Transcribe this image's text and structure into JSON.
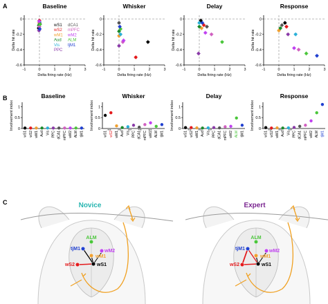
{
  "panel_letters": {
    "a": "A",
    "b": "B",
    "c": "C"
  },
  "epochs": [
    "Baseline",
    "Whisker",
    "Delay",
    "Response"
  ],
  "regions": [
    "wS1",
    "wS2",
    "wM1",
    "Aud",
    "Vis",
    "PPC",
    "dCA1",
    "mPFC",
    "wM2",
    "ALM",
    "tjM1"
  ],
  "colors": {
    "wS1": "#000000",
    "wS2": "#e41a1c",
    "wM1": "#f0a030",
    "Aud": "#1a8a2a",
    "Vis": "#2ab0d8",
    "PPC": "#8a3aa8",
    "dCA1": "#555555",
    "mPFC": "#d060c0",
    "wM2": "#c040f0",
    "ALM": "#4ac63a",
    "tjM1": "#2040d0",
    "teal": "#27b5b0",
    "purple": "#7a2590",
    "orange": "#f0a020"
  },
  "legend_col1": [
    "wS1",
    "wS2",
    "wM1",
    "Aud",
    "Vis",
    "PPC"
  ],
  "legend_col2": [
    "dCA1",
    "mPFC",
    "wM2",
    "ALM",
    "tjM1"
  ],
  "chart_data": [
    {
      "type": "scatter",
      "panel": "A",
      "title": "Baseline",
      "xlabel": "Delta firing rate (Hz)",
      "ylabel": "Delta hit rate",
      "xlim": [
        -1,
        3
      ],
      "ylim": [
        -0.6,
        0.05
      ],
      "xticks": [
        "-1",
        "0",
        "1",
        "2",
        "3"
      ],
      "yticks": [
        "0",
        "-0.2",
        "-0.4",
        "-0.6"
      ],
      "points": [
        {
          "r": "wS1",
          "x": -0.05,
          "y": -0.12
        },
        {
          "r": "wS2",
          "x": 0.0,
          "y": -0.02
        },
        {
          "r": "wM1",
          "x": -0.02,
          "y": -0.05
        },
        {
          "r": "Aud",
          "x": -0.04,
          "y": -0.08
        },
        {
          "r": "Vis",
          "x": 0.02,
          "y": -0.04
        },
        {
          "r": "PPC",
          "x": -0.03,
          "y": -0.15
        },
        {
          "r": "dCA1",
          "x": 0.03,
          "y": -0.06
        },
        {
          "r": "mPFC",
          "x": 0.0,
          "y": -0.1
        },
        {
          "r": "wM2",
          "x": -0.02,
          "y": -0.03
        },
        {
          "r": "ALM",
          "x": 0.04,
          "y": -0.07
        },
        {
          "r": "tjM1",
          "x": 0.02,
          "y": -0.13
        }
      ]
    },
    {
      "type": "scatter",
      "panel": "A",
      "title": "Whisker",
      "xlabel": "Delta firing rate (Hz)",
      "ylabel": "Delta hit rate",
      "xlim": [
        -1,
        3
      ],
      "ylim": [
        -0.6,
        0.05
      ],
      "xticks": [
        "-1",
        "0",
        "1",
        "2",
        "3"
      ],
      "yticks": [
        "0",
        "-0.2",
        "-0.4",
        "-0.6"
      ],
      "points": [
        {
          "r": "wS1",
          "x": 1.9,
          "y": -0.3
        },
        {
          "r": "wS2",
          "x": 1.1,
          "y": -0.5
        },
        {
          "r": "wM1",
          "x": 0.0,
          "y": -0.22
        },
        {
          "r": "Aud",
          "x": 0.0,
          "y": -0.16
        },
        {
          "r": "Vis",
          "x": 0.1,
          "y": -0.2
        },
        {
          "r": "PPC",
          "x": 0.0,
          "y": -0.35
        },
        {
          "r": "dCA1",
          "x": 0.0,
          "y": -0.05
        },
        {
          "r": "mPFC",
          "x": 0.25,
          "y": -0.3
        },
        {
          "r": "wM2",
          "x": 0.3,
          "y": -0.28
        },
        {
          "r": "ALM",
          "x": 0.1,
          "y": -0.13
        },
        {
          "r": "tjM1",
          "x": 0.05,
          "y": -0.1
        }
      ]
    },
    {
      "type": "scatter",
      "panel": "A",
      "title": "Delay",
      "xlabel": "Delta firing rate (Hz)",
      "ylabel": "Delta hit rate",
      "xlim": [
        -1,
        3
      ],
      "ylim": [
        -0.6,
        0.05
      ],
      "xticks": [
        "-1",
        "0",
        "1",
        "2",
        "3"
      ],
      "yticks": [
        "0",
        "-0.2",
        "-0.4",
        "-0.6"
      ],
      "points": [
        {
          "r": "wS1",
          "x": 0.1,
          "y": -0.02
        },
        {
          "r": "wS2",
          "x": 0.3,
          "y": -0.08
        },
        {
          "r": "wM1",
          "x": 0.15,
          "y": -0.12
        },
        {
          "r": "Aud",
          "x": 0.0,
          "y": -0.1
        },
        {
          "r": "Vis",
          "x": 0.0,
          "y": -0.05
        },
        {
          "r": "PPC",
          "x": -0.05,
          "y": -0.45
        },
        {
          "r": "dCA1",
          "x": 0.5,
          "y": -0.1
        },
        {
          "r": "mPFC",
          "x": 0.8,
          "y": -0.2
        },
        {
          "r": "wM2",
          "x": 0.4,
          "y": -0.18
        },
        {
          "r": "ALM",
          "x": 1.5,
          "y": -0.3
        },
        {
          "r": "tjM1",
          "x": 0.2,
          "y": -0.05
        }
      ]
    },
    {
      "type": "scatter",
      "panel": "A",
      "title": "Response",
      "xlabel": "Delta firing rate (Hz)",
      "ylabel": "Delta hit rate",
      "xlim": [
        -1,
        3
      ],
      "ylim": [
        -0.6,
        0.05
      ],
      "xticks": [
        "-1",
        "0",
        "1",
        "2",
        "3"
      ],
      "yticks": [
        "0",
        "-0.2",
        "-0.4",
        "-0.6"
      ],
      "points": [
        {
          "r": "wS1",
          "x": 0.4,
          "y": -0.05
        },
        {
          "r": "wS2",
          "x": 0.5,
          "y": -0.1
        },
        {
          "r": "wM1",
          "x": 0.0,
          "y": -0.15
        },
        {
          "r": "Aud",
          "x": 0.1,
          "y": -0.12
        },
        {
          "r": "Vis",
          "x": 1.1,
          "y": -0.2
        },
        {
          "r": "PPC",
          "x": 0.6,
          "y": -0.2
        },
        {
          "r": "dCA1",
          "x": 0.2,
          "y": -0.08
        },
        {
          "r": "mPFC",
          "x": 1.3,
          "y": -0.4
        },
        {
          "r": "wM2",
          "x": 1.0,
          "y": -0.38
        },
        {
          "r": "ALM",
          "x": 1.8,
          "y": -0.45
        },
        {
          "r": "tjM1",
          "x": 2.5,
          "y": -0.48
        }
      ]
    },
    {
      "type": "scatter",
      "panel": "B",
      "title": "Baseline",
      "ylabel": "Involvement index",
      "ylim": [
        0,
        1.2
      ],
      "yticks": [
        "0",
        "0.5",
        "1"
      ],
      "categories": [
        "wS1",
        "wS2",
        "wM1",
        "Aud",
        "Vis",
        "PPC",
        "dCA1",
        "mPFC",
        "wM2",
        "ALM",
        "tjM1"
      ],
      "values": [
        0.02,
        0.02,
        0.02,
        0.02,
        0.02,
        0.02,
        0.02,
        0.02,
        0.02,
        0.02,
        0.02
      ],
      "sig_marks": []
    },
    {
      "type": "scatter",
      "panel": "B",
      "title": "Whisker",
      "ylabel": "Involvement index",
      "ylim": [
        0,
        1.2
      ],
      "yticks": [
        "0",
        "0.5",
        "1"
      ],
      "categories": [
        "wS1",
        "wS2",
        "wM1",
        "Aud",
        "Vis",
        "PPC",
        "dCA1",
        "mPFC",
        "wM2",
        "ALM",
        "tjM1"
      ],
      "values": [
        0.6,
        0.72,
        0.12,
        0.04,
        0.08,
        0.15,
        0.06,
        0.18,
        0.26,
        0.1,
        0.18
      ],
      "sig_marks": [
        "***",
        "***",
        "***",
        "***",
        "***"
      ]
    },
    {
      "type": "scatter",
      "panel": "B",
      "title": "Delay",
      "ylabel": "Involvement index",
      "ylim": [
        0,
        1.2
      ],
      "yticks": [
        "0",
        "0.5",
        "1"
      ],
      "categories": [
        "wS1",
        "wS2",
        "wM1",
        "Aud",
        "Vis",
        "PPC",
        "dCA1",
        "mPFC",
        "wM2",
        "ALM",
        "tjM1"
      ],
      "values": [
        0.04,
        0.04,
        0.03,
        0.02,
        0.03,
        0.04,
        0.03,
        0.08,
        0.1,
        0.48,
        0.15
      ],
      "sig_marks": [
        "***",
        "***",
        "***"
      ]
    },
    {
      "type": "scatter",
      "panel": "B",
      "title": "Response",
      "ylabel": "Involvement index",
      "ylim": [
        0,
        1.2
      ],
      "yticks": [
        "0",
        "0.5",
        "1"
      ],
      "categories": [
        "wS1",
        "wS2",
        "wM1",
        "Aud",
        "Vis",
        "PPC",
        "dCA1",
        "mPFC",
        "wM2",
        "ALM",
        "tjM1"
      ],
      "values": [
        0.04,
        0.02,
        0.03,
        0.02,
        0.03,
        0.05,
        0.1,
        0.15,
        0.35,
        0.72,
        1.1
      ],
      "sig_marks": [
        "***",
        "***",
        "***"
      ]
    }
  ],
  "panel_c": {
    "novice_title": "Novice",
    "expert_title": "Expert",
    "brain_labels": [
      "ALM",
      "tjM1",
      "wM2",
      "wM1",
      "wS2",
      "wS1"
    ]
  }
}
